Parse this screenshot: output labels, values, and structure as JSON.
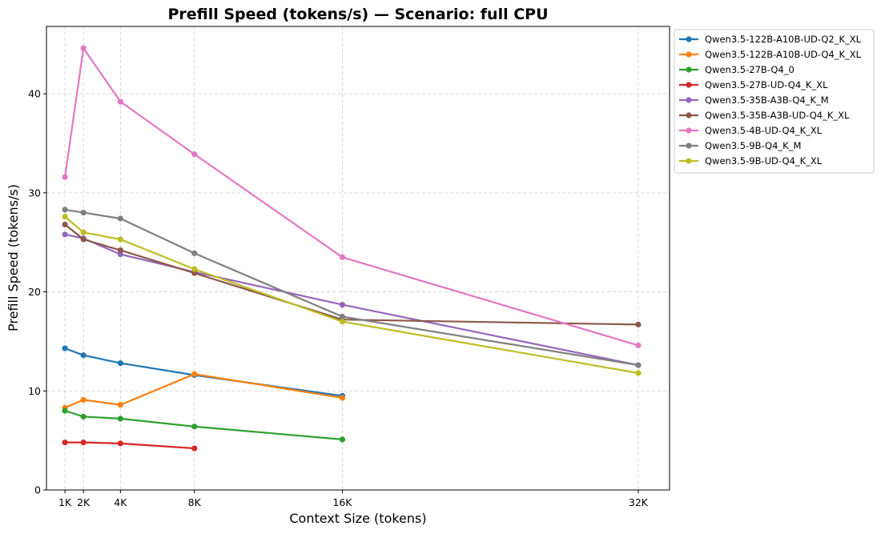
{
  "chart_data": {
    "type": "line",
    "title": "Prefill Speed (tokens/s) — Scenario: full CPU",
    "xlabel": "Context Size (tokens)",
    "ylabel": "Prefill Speed (tokens/s)",
    "x_ticks": [
      {
        "value": 1024,
        "label": "1K"
      },
      {
        "value": 2048,
        "label": "2K"
      },
      {
        "value": 4096,
        "label": "4K"
      },
      {
        "value": 8192,
        "label": "8K"
      },
      {
        "value": 16384,
        "label": "16K"
      },
      {
        "value": 32768,
        "label": "32K"
      }
    ],
    "y_ticks": [
      0,
      10,
      20,
      30,
      40
    ],
    "xlim": [
      0,
      34500
    ],
    "ylim": [
      0,
      46.8
    ],
    "grid": true,
    "legend_position": "outside top-right",
    "series": [
      {
        "name": "Qwen3.5-122B-A10B-UD-Q2_K_XL",
        "color": "#1f77b4",
        "x": [
          1024,
          2048,
          4096,
          8192,
          16384
        ],
        "y": [
          14.3,
          13.6,
          12.8,
          11.6,
          9.5
        ]
      },
      {
        "name": "Qwen3.5-122B-A10B-UD-Q4_K_XL",
        "color": "#ff7f0e",
        "x": [
          1024,
          2048,
          4096,
          8192,
          16384
        ],
        "y": [
          8.3,
          9.1,
          8.6,
          11.7,
          9.3
        ]
      },
      {
        "name": "Qwen3.5-27B-Q4_0",
        "color": "#2ca02c",
        "x": [
          1024,
          2048,
          4096,
          8192,
          16384
        ],
        "y": [
          8.0,
          7.4,
          7.2,
          6.4,
          5.1
        ]
      },
      {
        "name": "Qwen3.5-27B-UD-Q4_K_XL",
        "color": "#d62728",
        "x": [
          1024,
          2048,
          4096,
          8192
        ],
        "y": [
          4.8,
          4.8,
          4.7,
          4.2
        ]
      },
      {
        "name": "Qwen3.5-35B-A3B-Q4_K_M",
        "color": "#9467bd",
        "x": [
          1024,
          2048,
          4096,
          8192,
          16384,
          32768
        ],
        "y": [
          25.8,
          25.4,
          23.8,
          22.0,
          18.7,
          12.6
        ]
      },
      {
        "name": "Qwen3.5-35B-A3B-UD-Q4_K_XL",
        "color": "#8c564b",
        "x": [
          1024,
          2048,
          4096,
          8192,
          16384,
          32768
        ],
        "y": [
          26.8,
          25.3,
          24.2,
          21.9,
          17.2,
          16.7
        ]
      },
      {
        "name": "Qwen3.5-4B-UD-Q4_K_XL",
        "color": "#e377c2",
        "x": [
          1024,
          2048,
          4096,
          8192,
          16384,
          32768
        ],
        "y": [
          31.6,
          44.6,
          39.2,
          33.9,
          23.5,
          14.6
        ]
      },
      {
        "name": "Qwen3.5-9B-Q4_K_M",
        "color": "#7f7f7f",
        "x": [
          1024,
          2048,
          4096,
          8192,
          16384,
          32768
        ],
        "y": [
          28.3,
          28.0,
          27.4,
          23.9,
          17.5,
          12.6
        ]
      },
      {
        "name": "Qwen3.5-9B-UD-Q4_K_XL",
        "color": "#bcbd22",
        "x": [
          1024,
          2048,
          4096,
          8192,
          16384,
          32768
        ],
        "y": [
          27.6,
          26.0,
          25.3,
          22.3,
          17.0,
          11.8
        ]
      }
    ]
  }
}
